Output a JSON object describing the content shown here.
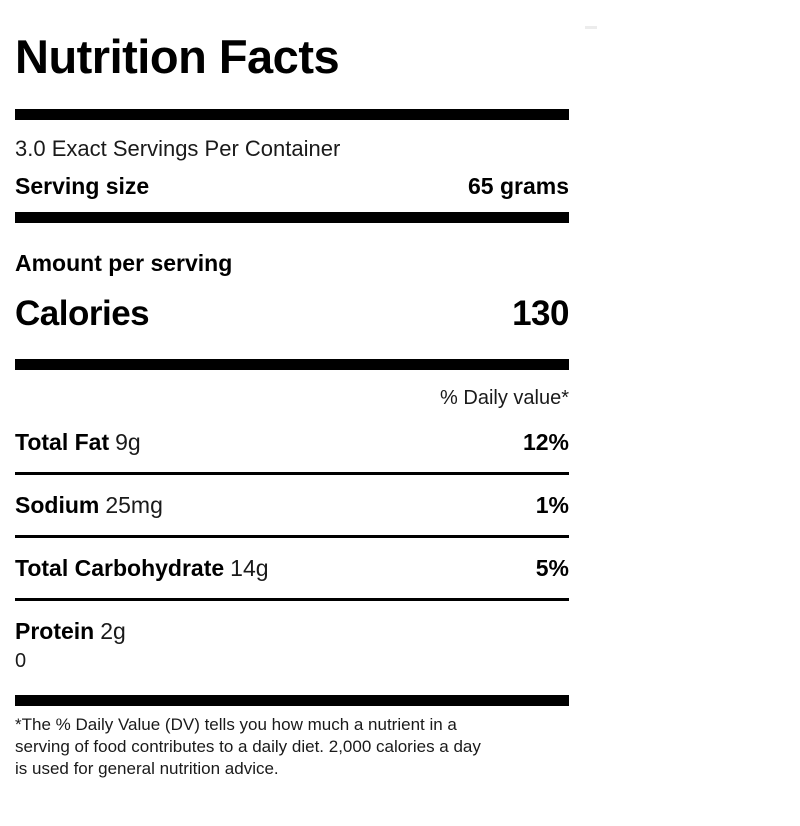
{
  "page": {
    "background_color": "#ffffff",
    "text_color": "#000000",
    "rule_color": "#000000"
  },
  "label": {
    "title": "Nutrition Facts",
    "servings_per_container": "3.0 Exact Servings Per Container",
    "serving_size_label": "Serving size",
    "serving_size_value": "65 grams",
    "amount_per_serving_label": "Amount per serving",
    "calories_label": "Calories",
    "calories_value": "130",
    "daily_value_header": "% Daily value*",
    "nutrients": [
      {
        "name": "Total Fat",
        "amount": "9g",
        "daily_value": "12%"
      },
      {
        "name": "Sodium",
        "amount": "25mg",
        "daily_value": "1%"
      },
      {
        "name": "Total Carbohydrate",
        "amount": "14g",
        "daily_value": "5%"
      },
      {
        "name": "Protein",
        "amount": "2g",
        "daily_value": ""
      }
    ],
    "trailing_value": "0",
    "footnote_lines": [
      "*The % Daily Value (DV) tells you how much a nutrient in a",
      "serving of food contributes to a daily diet. 2,000 calories a day",
      "is used for general nutrition advice."
    ]
  }
}
